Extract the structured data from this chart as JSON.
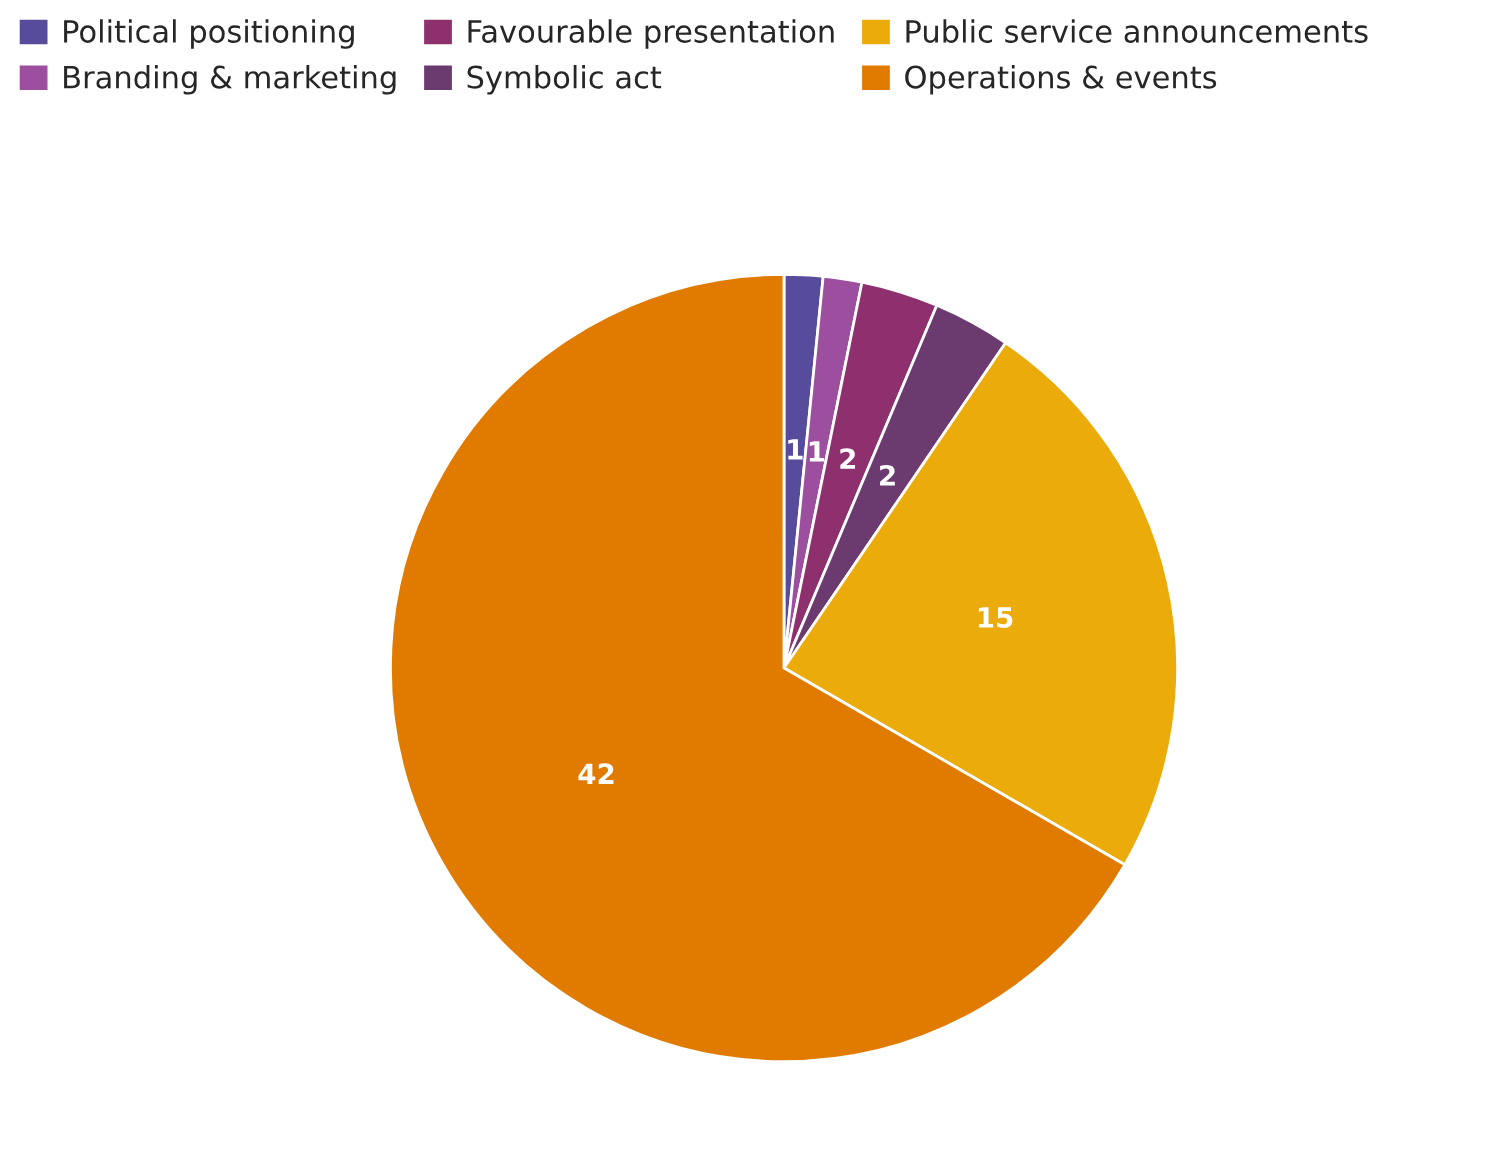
{
  "chart_data": {
    "type": "pie",
    "categories": [
      "Political positioning",
      "Branding & marketing",
      "Favourable presentation",
      "Symbolic act",
      "Public service announcements",
      "Operations & events"
    ],
    "values": [
      1,
      1,
      2,
      2,
      15,
      42
    ],
    "colors": [
      "#574b9c",
      "#9b4f9e",
      "#8e2f6e",
      "#6b3a6e",
      "#ebab0b",
      "#e07b00"
    ],
    "data_labels": true,
    "legend": "top left"
  }
}
